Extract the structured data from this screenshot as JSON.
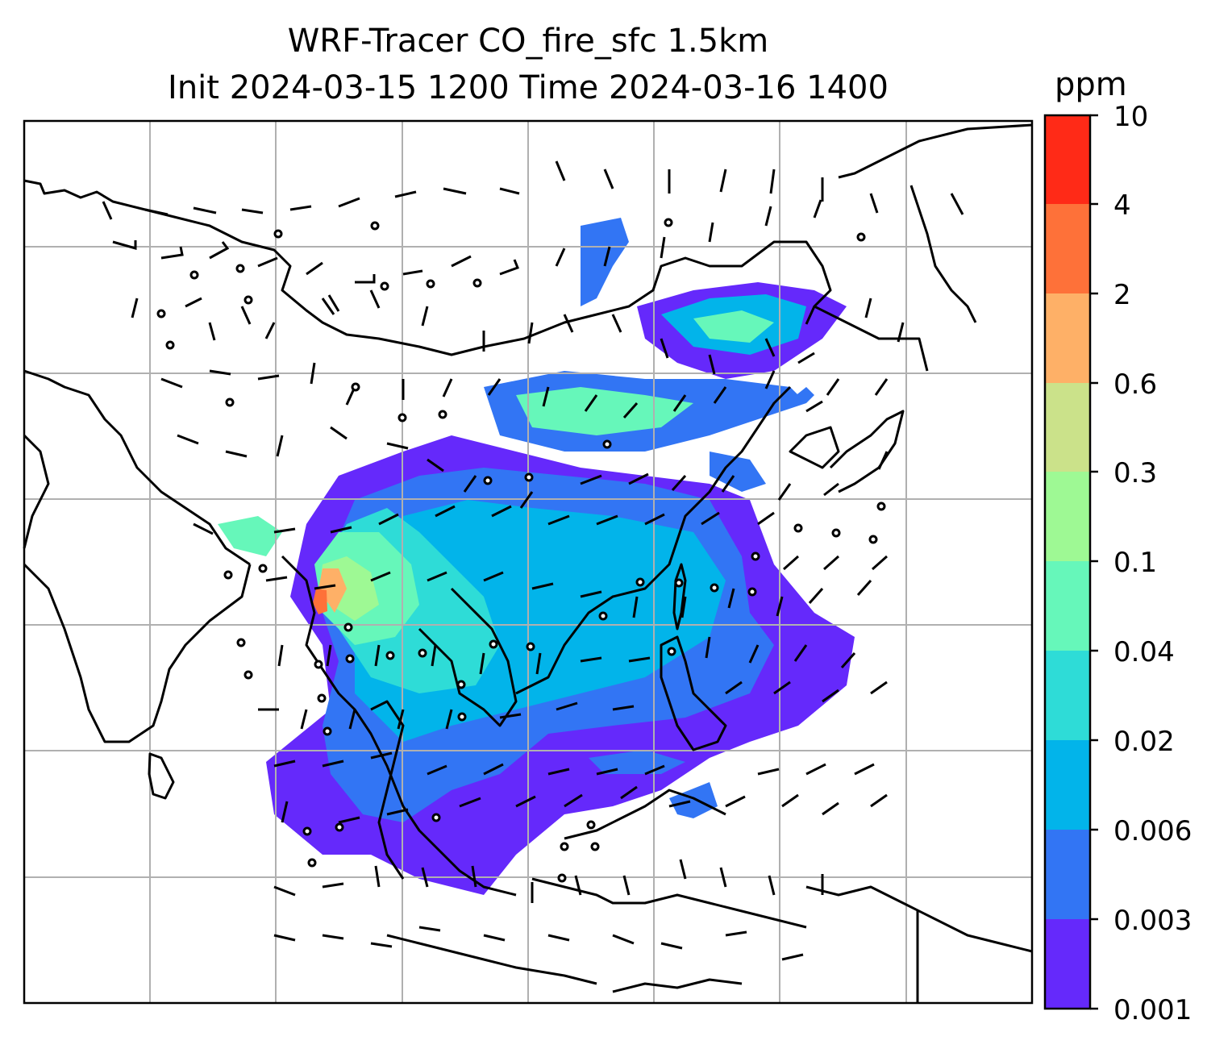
{
  "title": {
    "line1": "WRF-Tracer CO_fire_sfc 1.5km",
    "line2": "Init 2024-03-15 1200 Time 2024-03-16 1400"
  },
  "colorbar": {
    "unit": "ppm",
    "levels": [
      "0.001",
      "0.003",
      "0.006",
      "0.02",
      "0.04",
      "0.1",
      "0.3",
      "0.6",
      "2",
      "4",
      "10"
    ],
    "colors": [
      "#6529fb",
      "#3275f4",
      "#02b4ea",
      "#2edcd7",
      "#66f7ba",
      "#9ef994",
      "#cbe28a",
      "#feb067",
      "#fe7139",
      "#ff2a17"
    ]
  },
  "map": {
    "gridlines": "on",
    "colors": {
      "coastline": "#000000",
      "gridline": "#b0b0b0",
      "wind_barb": "#000000"
    }
  }
}
